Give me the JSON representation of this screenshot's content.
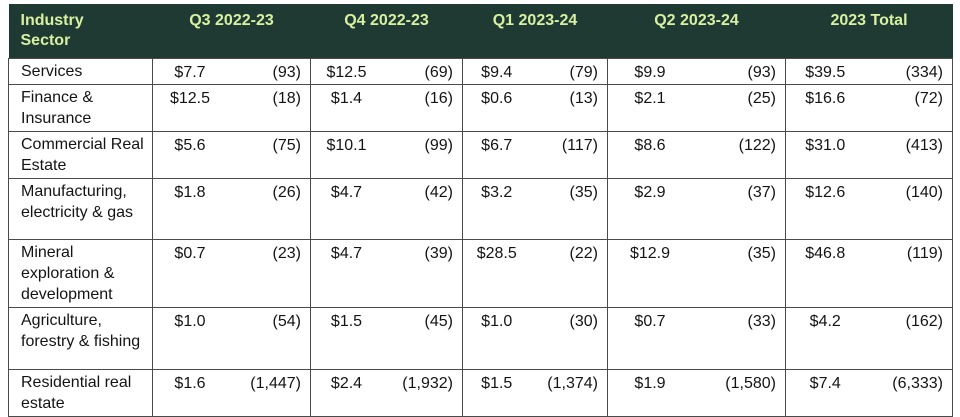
{
  "colors": {
    "header_bg": "#1e3a33",
    "header_text": "#d9f0a2",
    "border": "#4a4a4a",
    "body_text": "#141414"
  },
  "table": {
    "header": [
      "Industry Sector",
      "Q3 2022-23",
      "Q4 2022-23",
      "Q1 2023-24",
      "Q2 2023-24",
      "2023 Total"
    ],
    "rows": [
      {
        "sector": "Services",
        "cells": [
          {
            "amount": "$7.7",
            "count": "(93)"
          },
          {
            "amount": "$12.5",
            "count": "(69)"
          },
          {
            "amount": "$9.4",
            "count": "(79)"
          },
          {
            "amount": "$9.9",
            "count": "(93)"
          },
          {
            "amount": "$39.5",
            "count": "(334)"
          }
        ]
      },
      {
        "sector": "Finance & Insurance",
        "cells": [
          {
            "amount": "$12.5",
            "count": "(18)"
          },
          {
            "amount": "$1.4",
            "count": "(16)"
          },
          {
            "amount": "$0.6",
            "count": "(13)"
          },
          {
            "amount": "$2.1",
            "count": "(25)"
          },
          {
            "amount": "$16.6",
            "count": "(72)"
          }
        ]
      },
      {
        "sector": "Commercial Real Estate",
        "cells": [
          {
            "amount": "$5.6",
            "count": "(75)"
          },
          {
            "amount": "$10.1",
            "count": "(99)"
          },
          {
            "amount": "$6.7",
            "count": "(117)"
          },
          {
            "amount": "$8.6",
            "count": "(122)"
          },
          {
            "amount": "$31.0",
            "count": "(413)"
          }
        ]
      },
      {
        "sector": "Manufacturing, electricity & gas",
        "cells": [
          {
            "amount": "$1.8",
            "count": "(26)"
          },
          {
            "amount": "$4.7",
            "count": "(42)"
          },
          {
            "amount": "$3.2",
            "count": "(35)"
          },
          {
            "amount": "$2.9",
            "count": "(37)"
          },
          {
            "amount": "$12.6",
            "count": "(140)"
          }
        ]
      },
      {
        "sector": "Mineral exploration & development",
        "cells": [
          {
            "amount": "$0.7",
            "count": "(23)"
          },
          {
            "amount": "$4.7",
            "count": "(39)"
          },
          {
            "amount": "$28.5",
            "count": "(22)"
          },
          {
            "amount": "$12.9",
            "count": "(35)"
          },
          {
            "amount": "$46.8",
            "count": "(119)"
          }
        ]
      },
      {
        "sector": "Agriculture, forestry & fishing",
        "cells": [
          {
            "amount": "$1.0",
            "count": "(54)"
          },
          {
            "amount": "$1.5",
            "count": "(45)"
          },
          {
            "amount": "$1.0",
            "count": "(30)"
          },
          {
            "amount": "$0.7",
            "count": "(33)"
          },
          {
            "amount": "$4.2",
            "count": "(162)"
          }
        ]
      },
      {
        "sector": "Residential real estate",
        "cells": [
          {
            "amount": "$1.6",
            "count": "(1,447)"
          },
          {
            "amount": "$2.4",
            "count": "(1,932)"
          },
          {
            "amount": "$1.5",
            "count": "(1,374)"
          },
          {
            "amount": "$1.9",
            "count": "(1,580)"
          },
          {
            "amount": "$7.4",
            "count": "(6,333)"
          }
        ]
      }
    ]
  },
  "chart_data": {
    "type": "table",
    "title": "",
    "categories": [
      "Services",
      "Finance & Insurance",
      "Commercial Real Estate",
      "Manufacturing, electricity & gas",
      "Mineral exploration & development",
      "Agriculture, forestry & fishing",
      "Residential real estate"
    ],
    "series": [
      {
        "name": "Q3 2022-23 amount ($)",
        "values": [
          7.7,
          12.5,
          5.6,
          1.8,
          0.7,
          1.0,
          1.6
        ]
      },
      {
        "name": "Q3 2022-23 count",
        "values": [
          93,
          18,
          75,
          26,
          23,
          54,
          1447
        ]
      },
      {
        "name": "Q4 2022-23 amount ($)",
        "values": [
          12.5,
          1.4,
          10.1,
          4.7,
          4.7,
          1.5,
          2.4
        ]
      },
      {
        "name": "Q4 2022-23 count",
        "values": [
          69,
          16,
          99,
          42,
          39,
          45,
          1932
        ]
      },
      {
        "name": "Q1 2023-24 amount ($)",
        "values": [
          9.4,
          0.6,
          6.7,
          3.2,
          28.5,
          1.0,
          1.5
        ]
      },
      {
        "name": "Q1 2023-24 count",
        "values": [
          79,
          13,
          117,
          35,
          22,
          30,
          1374
        ]
      },
      {
        "name": "Q2 2023-24 amount ($)",
        "values": [
          9.9,
          2.1,
          8.6,
          2.9,
          12.9,
          0.7,
          1.9
        ]
      },
      {
        "name": "Q2 2023-24 count",
        "values": [
          93,
          25,
          122,
          37,
          35,
          33,
          1580
        ]
      },
      {
        "name": "2023 Total amount ($)",
        "values": [
          39.5,
          16.6,
          31.0,
          12.6,
          46.8,
          4.2,
          7.4
        ]
      },
      {
        "name": "2023 Total count",
        "values": [
          334,
          72,
          413,
          140,
          119,
          162,
          6333
        ]
      }
    ]
  }
}
